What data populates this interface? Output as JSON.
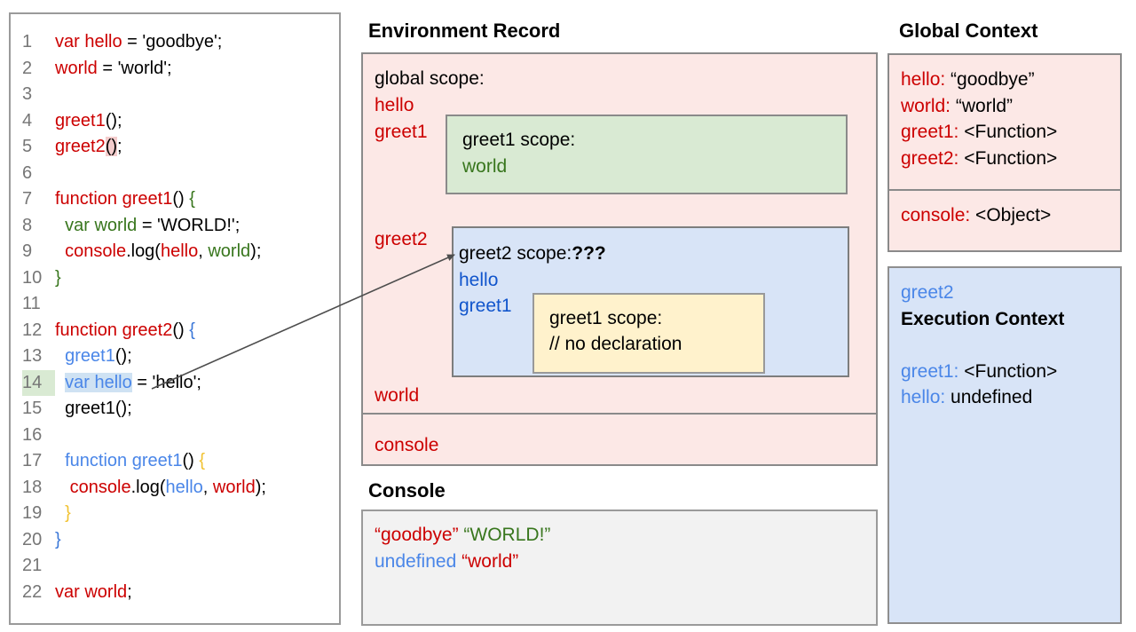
{
  "colors": {
    "code_red": "#cc0000",
    "code_green": "#38761d",
    "code_blue": "#4a86e8",
    "code_blue_dark": "#3c78d8",
    "scope_label_blue": "#1155cc",
    "brace_yellow": "#f1c232",
    "pink_fill": "#fce8e6",
    "green_fill": "#d9ead3",
    "blue_fill": "#d8e4f7",
    "yellow_fill": "#fff2cc",
    "console_fill": "#f2f2f2",
    "line_number_gray": "#767676",
    "highlight_pink": "#f4cccc",
    "highlight_blue": "#cfe2f3",
    "highlight_green": "#d9ead3"
  },
  "code_panel": {
    "lines": [
      {
        "n": "1",
        "tokens": [
          {
            "t": "var hello",
            "c": "red"
          },
          {
            "t": " = 'goodbye';",
            "c": "black"
          }
        ]
      },
      {
        "n": "2",
        "tokens": [
          {
            "t": "world",
            "c": "red"
          },
          {
            "t": " = 'world';",
            "c": "black"
          }
        ]
      },
      {
        "n": "3",
        "tokens": []
      },
      {
        "n": "4",
        "tokens": [
          {
            "t": "greet1",
            "c": "red"
          },
          {
            "t": "();",
            "c": "black"
          }
        ]
      },
      {
        "n": "5",
        "tokens": [
          {
            "t": "greet2",
            "c": "red"
          },
          {
            "t": "()",
            "c": "black",
            "hl": "pink"
          },
          {
            "t": ";",
            "c": "black"
          }
        ]
      },
      {
        "n": "6",
        "tokens": []
      },
      {
        "n": "7",
        "tokens": [
          {
            "t": "function greet1",
            "c": "red"
          },
          {
            "t": "() ",
            "c": "black"
          },
          {
            "t": "{",
            "c": "green"
          }
        ]
      },
      {
        "n": "8",
        "tokens": [
          {
            "t": "  ",
            "c": "black"
          },
          {
            "t": "var world",
            "c": "green"
          },
          {
            "t": " = 'WORLD!';",
            "c": "black"
          }
        ]
      },
      {
        "n": "9",
        "tokens": [
          {
            "t": "  ",
            "c": "black"
          },
          {
            "t": "console",
            "c": "red"
          },
          {
            "t": ".log(",
            "c": "black"
          },
          {
            "t": "hello",
            "c": "red"
          },
          {
            "t": ", ",
            "c": "black"
          },
          {
            "t": "world",
            "c": "green"
          },
          {
            "t": ");",
            "c": "black"
          }
        ]
      },
      {
        "n": "10",
        "tokens": [
          {
            "t": "}",
            "c": "green"
          }
        ]
      },
      {
        "n": "11",
        "tokens": []
      },
      {
        "n": "12",
        "tokens": [
          {
            "t": "function greet2",
            "c": "red"
          },
          {
            "t": "() ",
            "c": "black"
          },
          {
            "t": "{",
            "c": "bluedark"
          }
        ]
      },
      {
        "n": "13",
        "tokens": [
          {
            "t": "  ",
            "c": "black"
          },
          {
            "t": "greet1",
            "c": "blue"
          },
          {
            "t": "();",
            "c": "black"
          }
        ]
      },
      {
        "n": "14",
        "num_hl": "green",
        "tokens": [
          {
            "t": "  ",
            "c": "black"
          },
          {
            "t": "var hello",
            "c": "blue",
            "hl": "blue"
          },
          {
            "t": " = 'hello';",
            "c": "black"
          }
        ]
      },
      {
        "n": "15",
        "tokens": [
          {
            "t": "  greet1();",
            "c": "black"
          }
        ]
      },
      {
        "n": "16",
        "tokens": []
      },
      {
        "n": "17",
        "tokens": [
          {
            "t": "  ",
            "c": "black"
          },
          {
            "t": "function greet1",
            "c": "blue"
          },
          {
            "t": "() ",
            "c": "black"
          },
          {
            "t": "{",
            "c": "yellow"
          }
        ]
      },
      {
        "n": "18",
        "tokens": [
          {
            "t": "   ",
            "c": "black"
          },
          {
            "t": "console",
            "c": "red"
          },
          {
            "t": ".log(",
            "c": "black"
          },
          {
            "t": "hello",
            "c": "blue"
          },
          {
            "t": ", ",
            "c": "black"
          },
          {
            "t": "world",
            "c": "red"
          },
          {
            "t": ");",
            "c": "black"
          }
        ]
      },
      {
        "n": "19",
        "tokens": [
          {
            "t": "  ",
            "c": "black"
          },
          {
            "t": "}",
            "c": "yellow"
          }
        ]
      },
      {
        "n": "20",
        "tokens": [
          {
            "t": "}",
            "c": "bluedark"
          }
        ]
      },
      {
        "n": "21",
        "tokens": []
      },
      {
        "n": "22",
        "tokens": [
          {
            "t": "var world",
            "c": "red"
          },
          {
            "t": ";",
            "c": "black"
          }
        ]
      }
    ]
  },
  "environment_record": {
    "title": "Environment Record",
    "global_scope_label": "global scope:",
    "hello": "hello",
    "greet1": "greet1",
    "greet2": "greet2",
    "world": "world",
    "console_label": "console",
    "greet1_scope": {
      "label": "greet1 scope:",
      "world": "world"
    },
    "greet2_scope": {
      "title_tokens": [
        {
          "t": "greet2 scope:",
          "c": "black"
        },
        {
          "t": "???",
          "c": "black",
          "b": true
        }
      ],
      "hello": "hello",
      "greet1": "greet1",
      "inner": {
        "label": "greet1 scope:",
        "comment": "// no declaration"
      }
    }
  },
  "console_panel": {
    "title": "Console",
    "lines": [
      [
        {
          "t": "“goodbye”",
          "c": "red"
        },
        {
          "t": " ",
          "c": "black"
        },
        {
          "t": "“WORLD!”",
          "c": "green"
        }
      ],
      [
        {
          "t": "undefined",
          "c": "blue"
        },
        {
          "t": " ",
          "c": "black"
        },
        {
          "t": "“world”",
          "c": "red"
        }
      ]
    ]
  },
  "global_context": {
    "title": "Global Context",
    "entries": [
      [
        {
          "t": "hello:",
          "c": "red"
        },
        {
          "t": " “goodbye”",
          "c": "black"
        }
      ],
      [
        {
          "t": "world:",
          "c": "red"
        },
        {
          "t": " “world”",
          "c": "black"
        }
      ],
      [
        {
          "t": "greet1:",
          "c": "red"
        },
        {
          "t": " <Function>",
          "c": "black"
        }
      ],
      [
        {
          "t": "greet2:",
          "c": "red"
        },
        {
          "t": " <Function>",
          "c": "black"
        }
      ]
    ],
    "console_entry": [
      {
        "t": "console:",
        "c": "red"
      },
      {
        "t": " <Object>",
        "c": "black"
      }
    ]
  },
  "execution_context": {
    "fn_label": "greet2",
    "heading": "Execution Context",
    "entries": [
      [
        {
          "t": "greet1:",
          "c": "blue"
        },
        {
          "t": " <Function>",
          "c": "black"
        }
      ],
      [
        {
          "t": "hello:",
          "c": "blue"
        },
        {
          "t": " undefined",
          "c": "black"
        }
      ]
    ]
  }
}
